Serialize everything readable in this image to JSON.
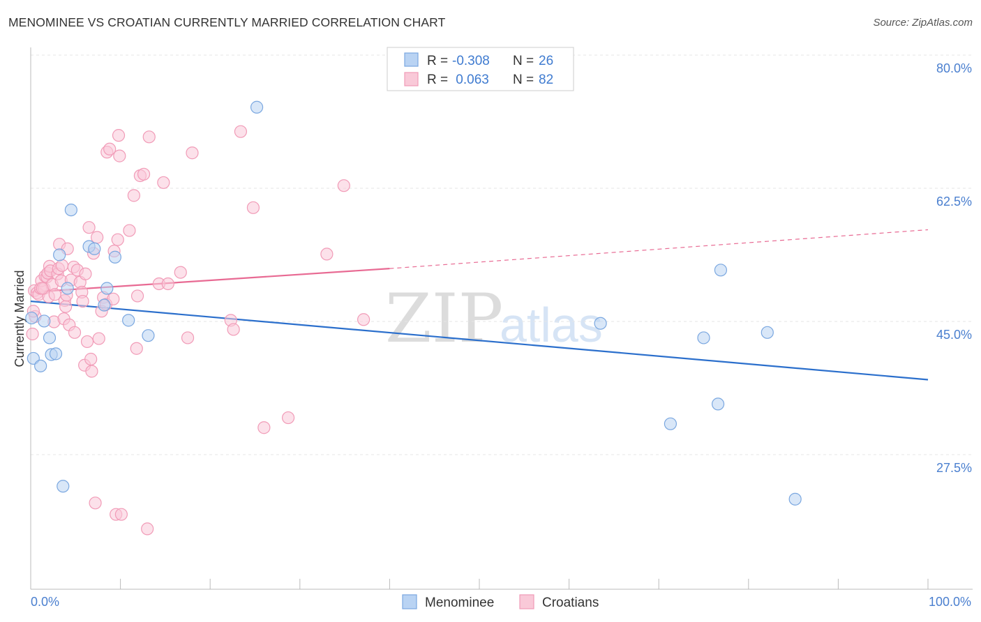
{
  "header": {
    "title": "MENOMINEE VS CROATIAN CURRENTLY MARRIED CORRELATION CHART",
    "source": "Source: ZipAtlas.com"
  },
  "legend": {
    "rows": [
      {
        "r_label": "R = ",
        "r_value": "-0.308",
        "n_label": "N = ",
        "n_value": "26",
        "color": "#a8c8f0"
      },
      {
        "r_label": "R = ",
        "r_value": " 0.063",
        "n_label": "N = ",
        "n_value": "82",
        "color": "#f6b8cc"
      }
    ]
  },
  "watermark": {
    "zip": "ZIP",
    "atlas": "atlas"
  },
  "chart_data": {
    "type": "scatter",
    "title": "MENOMINEE VS CROATIAN CURRENTLY MARRIED CORRELATION CHART",
    "xlabel": "",
    "ylabel": "Currently Married",
    "xlim": [
      0,
      100
    ],
    "ylim": [
      10,
      83
    ],
    "x_tick_labels": [
      "0.0%",
      "100.0%"
    ],
    "y_ticks": [
      80.0,
      62.5,
      45.0,
      27.5
    ],
    "y_tick_labels": [
      "80.0%",
      "62.5%",
      "45.0%",
      "27.5%"
    ],
    "series": [
      {
        "name": "Menominee",
        "color": "#7aa7e0",
        "fill": "#b9d3f3",
        "trend": {
          "x0": 0,
          "y0": 49.3,
          "x1": 100,
          "y1": 39.0,
          "style": "solid",
          "color": "#2b6fcc"
        },
        "points": [
          [
            0.3,
            41.8
          ],
          [
            1.1,
            40.8
          ],
          [
            1.5,
            46.7
          ],
          [
            2.1,
            44.5
          ],
          [
            2.3,
            42.3
          ],
          [
            2.8,
            42.4
          ],
          [
            3.2,
            55.4
          ],
          [
            3.6,
            25.0
          ],
          [
            4.1,
            51.0
          ],
          [
            4.5,
            61.3
          ],
          [
            6.5,
            56.5
          ],
          [
            7.1,
            56.2
          ],
          [
            8.2,
            48.8
          ],
          [
            8.5,
            51.0
          ],
          [
            9.4,
            55.1
          ],
          [
            10.9,
            46.8
          ],
          [
            13.1,
            44.8
          ],
          [
            25.2,
            74.8
          ],
          [
            63.5,
            46.4
          ],
          [
            71.3,
            33.2
          ],
          [
            75.0,
            44.5
          ],
          [
            76.6,
            35.8
          ],
          [
            76.9,
            53.4
          ],
          [
            82.1,
            45.2
          ],
          [
            85.2,
            23.3
          ],
          [
            0.1,
            47.1
          ]
        ]
      },
      {
        "name": "Croatians",
        "color": "#f19bb7",
        "fill": "#f9c9d8",
        "trend": {
          "x0": 0,
          "y0": 50.5,
          "x1": 40,
          "y1": 53.6,
          "x2": 100,
          "y2": 58.7,
          "style": "solid-then-dashed",
          "color": "#e86a93"
        },
        "points": [
          [
            0.2,
            45.0
          ],
          [
            0.4,
            50.7
          ],
          [
            0.5,
            47.3
          ],
          [
            0.7,
            50.4
          ],
          [
            0.9,
            50.2
          ],
          [
            1.1,
            51.0
          ],
          [
            1.2,
            52.0
          ],
          [
            1.5,
            51.0
          ],
          [
            1.6,
            52.6
          ],
          [
            1.8,
            52.5
          ],
          [
            1.9,
            53.0
          ],
          [
            2.0,
            49.9
          ],
          [
            2.1,
            53.9
          ],
          [
            2.2,
            53.3
          ],
          [
            2.4,
            51.5
          ],
          [
            2.6,
            46.6
          ],
          [
            2.7,
            50.2
          ],
          [
            3.0,
            52.9
          ],
          [
            3.1,
            53.6
          ],
          [
            3.2,
            56.8
          ],
          [
            3.4,
            52.0
          ],
          [
            3.5,
            54.0
          ],
          [
            3.7,
            47.0
          ],
          [
            3.8,
            49.4
          ],
          [
            3.9,
            48.6
          ],
          [
            4.0,
            50.1
          ],
          [
            4.1,
            56.2
          ],
          [
            4.3,
            46.2
          ],
          [
            4.5,
            52.1
          ],
          [
            4.8,
            53.8
          ],
          [
            4.9,
            45.2
          ],
          [
            5.2,
            53.4
          ],
          [
            5.5,
            51.8
          ],
          [
            5.7,
            50.5
          ],
          [
            5.8,
            49.3
          ],
          [
            6.0,
            40.9
          ],
          [
            6.1,
            52.9
          ],
          [
            6.3,
            44.0
          ],
          [
            6.5,
            59.0
          ],
          [
            6.7,
            41.7
          ],
          [
            6.8,
            40.1
          ],
          [
            7.0,
            55.6
          ],
          [
            7.2,
            22.8
          ],
          [
            7.4,
            57.7
          ],
          [
            7.6,
            44.4
          ],
          [
            7.9,
            48.0
          ],
          [
            8.1,
            49.8
          ],
          [
            8.4,
            48.9
          ],
          [
            8.5,
            68.9
          ],
          [
            8.8,
            69.3
          ],
          [
            9.2,
            49.6
          ],
          [
            9.3,
            55.9
          ],
          [
            9.5,
            21.3
          ],
          [
            9.7,
            57.4
          ],
          [
            9.8,
            71.1
          ],
          [
            9.9,
            68.4
          ],
          [
            10.1,
            21.3
          ],
          [
            11.0,
            58.6
          ],
          [
            11.5,
            63.2
          ],
          [
            11.8,
            43.1
          ],
          [
            11.9,
            50.0
          ],
          [
            12.2,
            65.8
          ],
          [
            12.6,
            66.0
          ],
          [
            13.0,
            19.4
          ],
          [
            13.2,
            70.9
          ],
          [
            14.3,
            51.6
          ],
          [
            14.8,
            64.9
          ],
          [
            15.3,
            51.6
          ],
          [
            16.7,
            53.1
          ],
          [
            17.5,
            44.5
          ],
          [
            18.0,
            68.8
          ],
          [
            22.3,
            46.8
          ],
          [
            22.6,
            45.6
          ],
          [
            23.4,
            71.6
          ],
          [
            24.8,
            61.6
          ],
          [
            26.0,
            32.7
          ],
          [
            28.7,
            34.0
          ],
          [
            33.0,
            55.5
          ],
          [
            34.9,
            64.5
          ],
          [
            37.1,
            46.9
          ],
          [
            0.3,
            48.0
          ],
          [
            1.3,
            51.0
          ]
        ]
      }
    ]
  },
  "bottom_legend": {
    "items": [
      {
        "label": "Menominee",
        "color": "#a8c8f0"
      },
      {
        "label": "Croatians",
        "color": "#f6b8cc"
      }
    ]
  }
}
